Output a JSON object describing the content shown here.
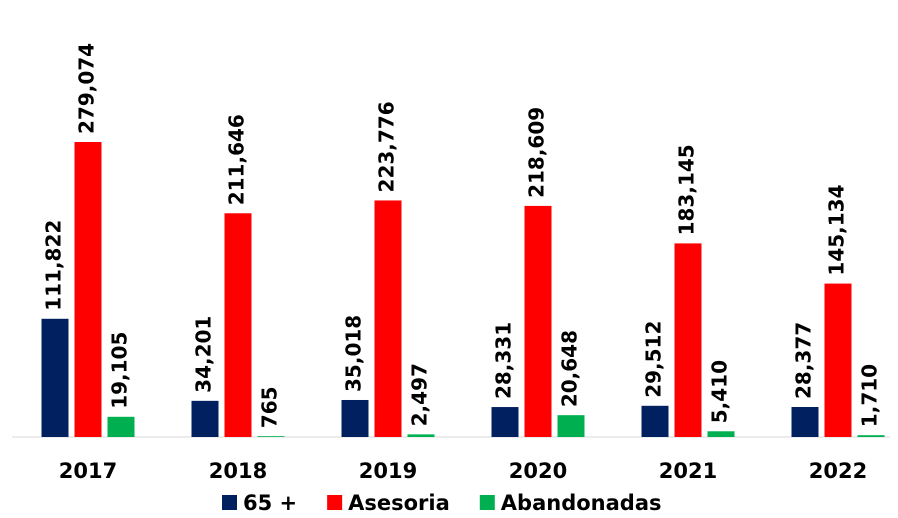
{
  "chart_data": {
    "type": "bar",
    "categories": [
      "2017",
      "2018",
      "2019",
      "2020",
      "2021",
      "2022"
    ],
    "series": [
      {
        "name": "65 +",
        "color": "#002060",
        "values": [
          111822,
          34201,
          35018,
          28331,
          29512,
          28377
        ],
        "value_labels": [
          "111,822",
          "34,201",
          "35,018",
          "28,331",
          "29,512",
          "28,377"
        ]
      },
      {
        "name": "Asesoria",
        "color": "#ff0000",
        "values": [
          279074,
          211646,
          223776,
          218609,
          183145,
          145134
        ],
        "value_labels": [
          "279,074",
          "211,646",
          "223,776",
          "218,609",
          "183,145",
          "145,134"
        ]
      },
      {
        "name": "Abandonadas",
        "color": "#00b050",
        "values": [
          19105,
          765,
          2497,
          20648,
          5410,
          1710
        ],
        "value_labels": [
          "19,105",
          "765",
          "2,497",
          "20,648",
          "5,410",
          "1,710"
        ]
      }
    ]
  }
}
